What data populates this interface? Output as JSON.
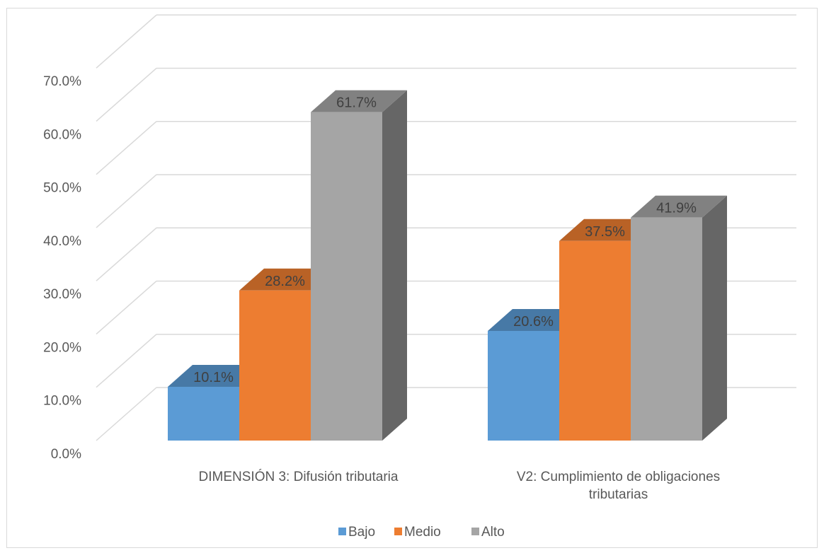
{
  "chart_data": {
    "type": "bar",
    "style": "3d-clustered-column",
    "categories": [
      [
        "DIMENSIÓN 3: Difusión tributaria"
      ],
      [
        "V2: Cumplimiento de obligaciones",
        "tributarias"
      ]
    ],
    "series": [
      {
        "name": "Bajo",
        "values": [
          10.1,
          20.6
        ],
        "labels": [
          "10.1%",
          "20.6%"
        ],
        "color": "#5b9bd5"
      },
      {
        "name": "Medio",
        "values": [
          28.2,
          37.5
        ],
        "labels": [
          "28.2%",
          "37.5%"
        ],
        "color": "#ed7d31"
      },
      {
        "name": "Alto",
        "values": [
          61.7,
          41.9
        ],
        "labels": [
          "61.7%",
          "41.9%"
        ],
        "color": "#a5a5a5"
      }
    ],
    "y_ticks": [
      "0.0%",
      "10.0%",
      "20.0%",
      "30.0%",
      "40.0%",
      "50.0%",
      "60.0%",
      "70.0%"
    ],
    "ylim": [
      0,
      70
    ],
    "grid": true,
    "legend_position": "bottom",
    "title": "",
    "xlabel": "",
    "ylabel": ""
  }
}
